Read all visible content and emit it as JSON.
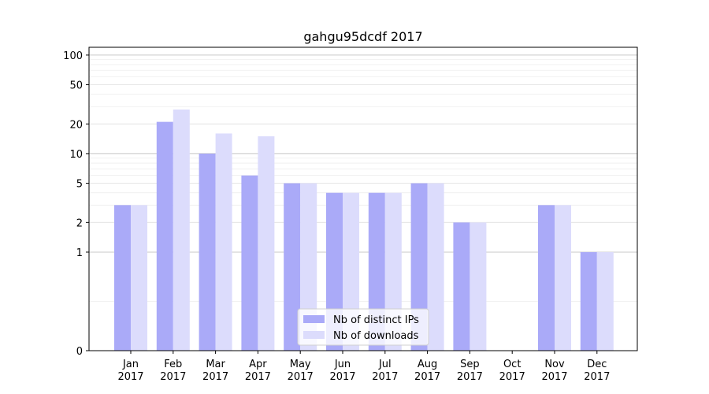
{
  "chart_data": {
    "type": "bar",
    "title": "gahgu95dcdf 2017",
    "xlabel": "",
    "ylabel": "",
    "yscale": "symlog",
    "ylim": [
      0,
      120
    ],
    "grid": "horizontal",
    "legend_position": "lower-center",
    "categories": [
      [
        "Jan",
        "2017"
      ],
      [
        "Feb",
        "2017"
      ],
      [
        "Mar",
        "2017"
      ],
      [
        "Apr",
        "2017"
      ],
      [
        "May",
        "2017"
      ],
      [
        "Jun",
        "2017"
      ],
      [
        "Jul",
        "2017"
      ],
      [
        "Aug",
        "2017"
      ],
      [
        "Sep",
        "2017"
      ],
      [
        "Oct",
        "2017"
      ],
      [
        "Nov",
        "2017"
      ],
      [
        "Dec",
        "2017"
      ]
    ],
    "yticks": [
      {
        "value": 0,
        "label": "0"
      },
      {
        "value": 1,
        "label": "1"
      },
      {
        "value": 2,
        "label": "2"
      },
      {
        "value": 5,
        "label": "5"
      },
      {
        "value": 10,
        "label": "10"
      },
      {
        "value": 20,
        "label": "20"
      },
      {
        "value": 50,
        "label": "50"
      },
      {
        "value": 100,
        "label": "100"
      }
    ],
    "series": [
      {
        "name": "Nb of distinct IPs",
        "color": "#aaaaf8",
        "values": [
          3,
          21,
          10,
          6,
          5,
          4,
          4,
          5,
          2,
          0,
          3,
          1
        ]
      },
      {
        "name": "Nb of downloads",
        "color": "#dcdcfc",
        "values": [
          3,
          28,
          16,
          15,
          5,
          4,
          4,
          5,
          2,
          0,
          3,
          1
        ]
      }
    ]
  }
}
